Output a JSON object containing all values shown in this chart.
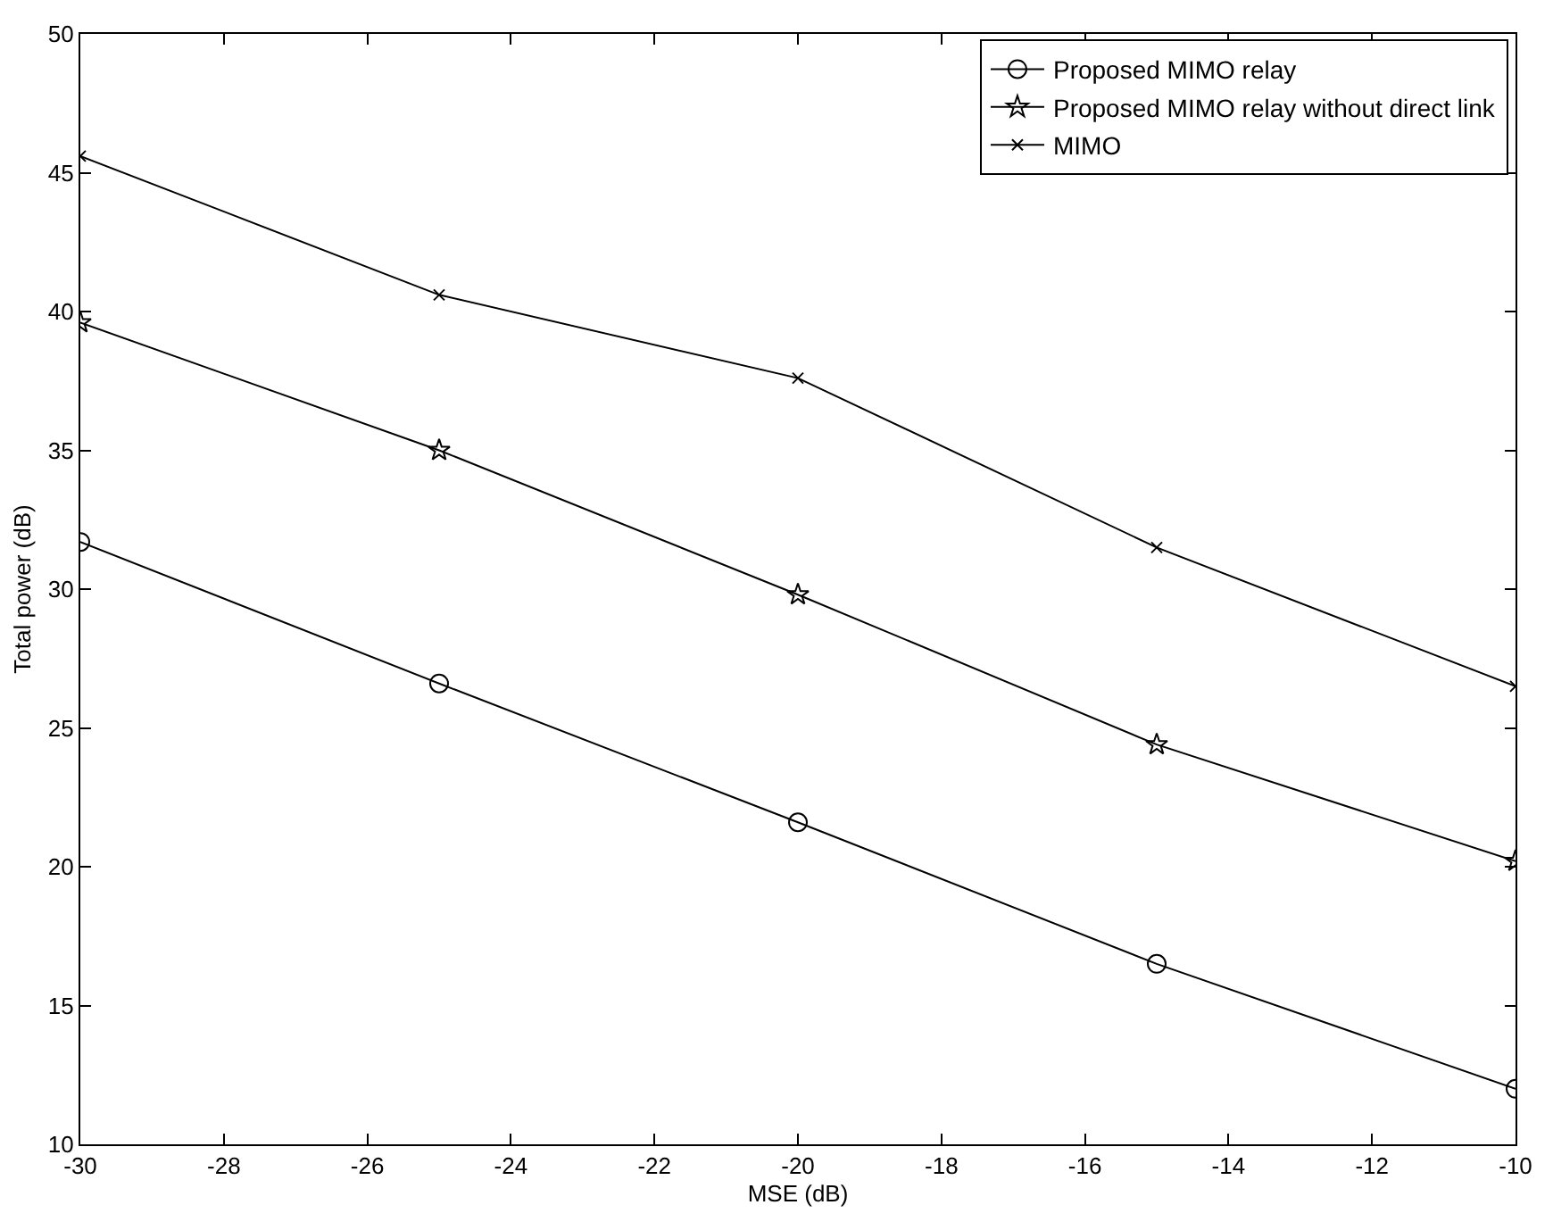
{
  "chart_data": {
    "type": "line",
    "xlabel": "MSE (dB)",
    "ylabel": "Total power (dB)",
    "x": [
      -30,
      -25,
      -20,
      -15,
      -10
    ],
    "series": [
      {
        "name": "Proposed MIMO relay",
        "color": "#000000",
        "marker": "circle",
        "values": [
          31.7,
          26.6,
          21.6,
          16.5,
          12.0
        ]
      },
      {
        "name": "Proposed MIMO relay without direct link",
        "color": "#000000",
        "marker": "star",
        "values": [
          39.6,
          35.0,
          29.8,
          24.4,
          20.2
        ]
      },
      {
        "name": "MIMO",
        "color": "#000000",
        "marker": "cross",
        "values": [
          45.6,
          40.6,
          37.6,
          31.5,
          26.5
        ]
      }
    ],
    "xlim": [
      -30,
      -10
    ],
    "xticks": [
      -30,
      -28,
      -26,
      -24,
      -22,
      -20,
      -18,
      -16,
      -14,
      -12,
      -10
    ],
    "ylim": [
      10,
      50
    ],
    "yticks": [
      10,
      15,
      20,
      25,
      30,
      35,
      40,
      45,
      50
    ],
    "legend": "top right",
    "line_style": "solid"
  }
}
